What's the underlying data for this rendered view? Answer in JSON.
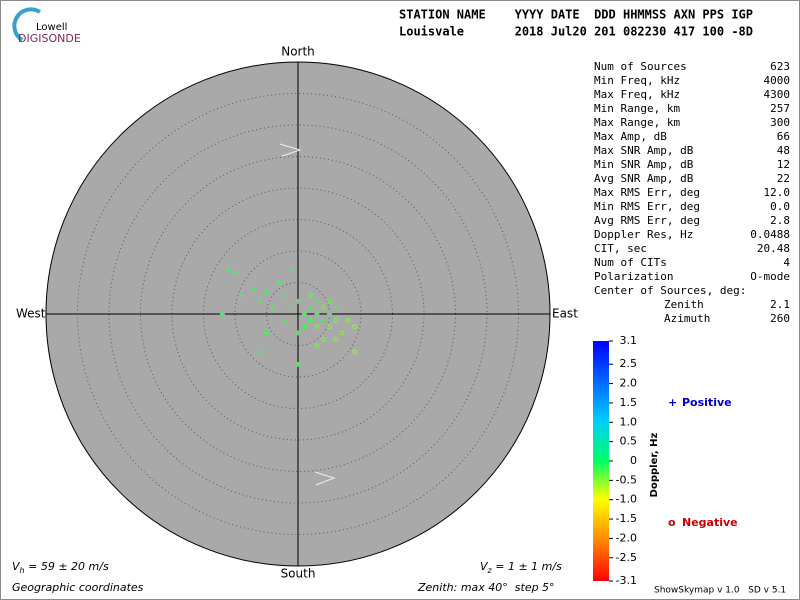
{
  "logo": {
    "line1": "Lowell",
    "line2": "DIGISONDE"
  },
  "header": {
    "labels": "STATION NAME    YYYY DATE  DDD HHMMSS AXN PPS IGP",
    "values": "Louisvale       2018 Jul20 201 082230 417 100 -8D"
  },
  "directions": {
    "north": "North",
    "south": "South",
    "west": "West",
    "east": "East"
  },
  "stats": [
    [
      "Num of Sources",
      "623"
    ],
    [
      "Min Freq, kHz",
      "4000"
    ],
    [
      "Max Freq, kHz",
      "4300"
    ],
    [
      "Min Range, km",
      "257"
    ],
    [
      "Max Range, km",
      "300"
    ],
    [
      "Max Amp, dB",
      "66"
    ],
    [
      "Max SNR Amp, dB",
      "48"
    ],
    [
      "Min SNR Amp, dB",
      "12"
    ],
    [
      "Avg SNR Amp, dB",
      "22"
    ],
    [
      "Max RMS Err, deg",
      "12.0"
    ],
    [
      "Min RMS Err, deg",
      "0.0"
    ],
    [
      "Avg RMS Err, deg",
      "2.8"
    ],
    [
      "Doppler Res, Hz",
      "0.0488"
    ],
    [
      "CIT, sec",
      "20.48"
    ],
    [
      "Num of CITs",
      "4"
    ],
    [
      "Polarization",
      "O-mode"
    ]
  ],
  "center": {
    "title": "Center of Sources, deg:",
    "zenith_label": "Zenith",
    "zenith": "2.1",
    "azimuth_label": "Azimuth",
    "azimuth": "260"
  },
  "colorbar": {
    "title": "Doppler, Hz",
    "lim": [
      -3.1,
      3.1
    ],
    "ticks": [
      3.1,
      2.5,
      {
        "value": 2,
        "label": "2.0"
      },
      1.5,
      {
        "value": 1,
        "label": "1.0"
      },
      0.5,
      0,
      -0.5,
      {
        "value": -1,
        "label": "-1.0"
      },
      -1.5,
      {
        "value": -2,
        "label": "-2.0"
      },
      -2.5,
      -3.1
    ]
  },
  "legend": {
    "positive_symbol": "+",
    "positive": "Positive",
    "negative_symbol": "o",
    "negative": "Negative"
  },
  "zenith_max": 40,
  "zenith_step": 5,
  "sources": [
    [
      -11,
      7,
      0.3
    ],
    [
      -10,
      6.5,
      0.3
    ],
    [
      -12,
      0,
      0.4
    ],
    [
      -9,
      3,
      0.3
    ],
    [
      -7,
      4,
      0.2
    ],
    [
      -6,
      2,
      0.2
    ],
    [
      -5,
      3.5,
      0.3
    ],
    [
      -4,
      1,
      0.2
    ],
    [
      -3,
      5,
      0.3
    ],
    [
      -2,
      3,
      0.2
    ],
    [
      -1,
      7,
      0.3
    ],
    [
      -2,
      -1,
      0.2
    ],
    [
      -1,
      1,
      0.1
    ],
    [
      0,
      2,
      0.2
    ],
    [
      0,
      -3,
      0.1
    ],
    [
      1,
      0,
      0.2
    ],
    [
      1,
      -2,
      0.1
    ],
    [
      2,
      1,
      0.2
    ],
    [
      2,
      -1,
      0.2
    ],
    [
      3,
      0,
      0.1
    ],
    [
      3,
      2,
      0.2
    ],
    [
      4,
      -1,
      0.1
    ],
    [
      5,
      0,
      0.2
    ],
    [
      6,
      1,
      0.1
    ],
    [
      -5,
      -3,
      0.2
    ],
    [
      -6,
      -6,
      0.3
    ],
    [
      0,
      -8,
      0.2
    ],
    [
      2,
      3,
      -0.3
    ],
    [
      3,
      -2,
      -0.4
    ],
    [
      4,
      1,
      -0.4
    ],
    [
      5,
      -2,
      -0.5
    ],
    [
      6,
      -1,
      -0.4
    ],
    [
      7,
      -3,
      -0.5
    ],
    [
      8,
      -1,
      -0.6
    ],
    [
      9,
      -2,
      -0.6
    ],
    [
      6,
      -4,
      -0.5
    ],
    [
      4,
      -4,
      -0.4
    ],
    [
      9,
      -6,
      -0.7
    ],
    [
      3,
      -5,
      -0.4
    ],
    [
      5,
      2,
      -0.3
    ]
  ],
  "footer": {
    "vh_v": "V",
    "vh_sub": "h",
    "vh": " = 59 ± 20 m/s",
    "vz_v": "V",
    "vz_sub": "z",
    "vz": " = 1 ± 1 m/s",
    "coords": "Geographic coordinates",
    "zenith": "Zenith: max 40°  step 5°",
    "version": "ShowSkymap v 1.0   SD v 5.1"
  }
}
